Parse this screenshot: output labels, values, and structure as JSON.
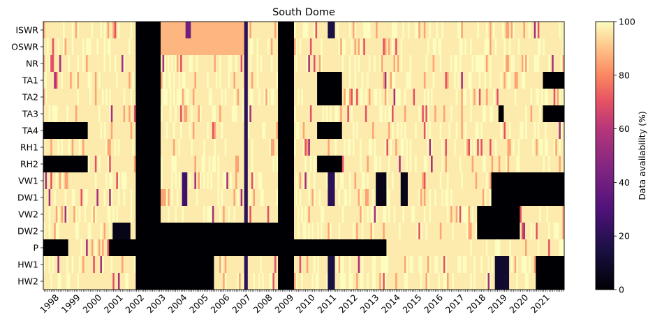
{
  "chart_data": {
    "type": "heatmap",
    "title": "South Dome",
    "colorbar_label": "Data availability (%)",
    "colorbar_ticks": [
      0,
      20,
      40,
      60,
      80,
      100
    ],
    "value_range": [
      0,
      100
    ],
    "colormap": "magma",
    "x_start": "1997-06",
    "x_end": "2021-10",
    "year_labels": [
      "1998",
      "1999",
      "2000",
      "2001",
      "2002",
      "2003",
      "2004",
      "2005",
      "2006",
      "2007",
      "2008",
      "2009",
      "2010",
      "2011",
      "2012",
      "2013",
      "2014",
      "2015",
      "2016",
      "2017",
      "2018",
      "2019",
      "2020",
      "2021"
    ],
    "rows": [
      "ISWR",
      "OSWR",
      "NR",
      "TA1",
      "TA2",
      "TA3",
      "TA4",
      "RH1",
      "RH2",
      "VW1",
      "DW1",
      "VW2",
      "DW2",
      "P",
      "HW1",
      "HW2"
    ],
    "base_value": 97,
    "blocks": [
      {
        "rows": "all",
        "from": "2001-10",
        "to": "2002-11",
        "value": 0
      },
      {
        "rows": "all",
        "from": "2008-06",
        "to": "2009-02",
        "value": 0
      },
      {
        "rows": "all",
        "from": "2006-11",
        "to": "2006-12",
        "value": 20
      },
      {
        "rows": [
          "TA1",
          "TA2",
          "TA4",
          "RH2"
        ],
        "from": "2010-04",
        "to": "2011-05",
        "value": 0
      },
      {
        "rows": [
          "TA4",
          "RH2"
        ],
        "from": "1997-06",
        "to": "1999-06",
        "value": 0
      },
      {
        "rows": [
          "DW2"
        ],
        "from": "2002-12",
        "to": "2008-05",
        "value": 0
      },
      {
        "rows": [
          "P"
        ],
        "from": "1997-06",
        "to": "1998-07",
        "value": 0
      },
      {
        "rows": [
          "P"
        ],
        "from": "2000-07",
        "to": "2013-06",
        "value": 0
      },
      {
        "rows": [
          "HW1",
          "HW2"
        ],
        "from": "2002-12",
        "to": "2005-05",
        "value": 0
      },
      {
        "rows": [
          "VW1",
          "DW1"
        ],
        "from": "2018-06",
        "to": "2021-10",
        "value": 0
      },
      {
        "rows": [
          "VW2",
          "DW2"
        ],
        "from": "2017-10",
        "to": "2019-09",
        "value": 0
      },
      {
        "rows": [
          "TA1",
          "TA3"
        ],
        "from": "2020-11",
        "to": "2021-10",
        "value": 0
      },
      {
        "rows": [
          "HW1",
          "HW2"
        ],
        "from": "2020-07",
        "to": "2021-10",
        "value": 0
      },
      {
        "rows": [
          "HW1",
          "HW2"
        ],
        "from": "2018-08",
        "to": "2019-03",
        "value": 10
      },
      {
        "rows": [
          "TA3"
        ],
        "from": "2018-10",
        "to": "2018-12",
        "value": 0
      },
      {
        "rows": [
          "DW2"
        ],
        "from": "2000-09",
        "to": "2001-06",
        "value": 5
      },
      {
        "rows": [
          "P"
        ],
        "from": "2013-07",
        "to": "2017-05",
        "value": 97
      },
      {
        "rows": [
          "ISWR",
          "OSWR"
        ],
        "from": "2002-12",
        "to": "2006-10",
        "value": 88
      },
      {
        "rows": [
          "ISWR"
        ],
        "from": "2004-02",
        "to": "2004-04",
        "value": 40
      },
      {
        "rows": [
          "VW1",
          "DW1"
        ],
        "from": "2003-12",
        "to": "2004-02",
        "value": 25
      },
      {
        "rows": [
          "VW1",
          "DW1"
        ],
        "from": "2013-01",
        "to": "2013-06",
        "value": 5
      },
      {
        "rows": [
          "VW1",
          "DW1"
        ],
        "from": "2014-03",
        "to": "2014-06",
        "value": 5
      },
      {
        "rows": [
          "HW1",
          "HW2",
          "ISWR"
        ],
        "from": "2010-10",
        "to": "2011-01",
        "value": 15
      },
      {
        "rows": [
          "DW1",
          "VW1"
        ],
        "from": "2010-10",
        "to": "2011-01",
        "value": 20
      }
    ]
  }
}
